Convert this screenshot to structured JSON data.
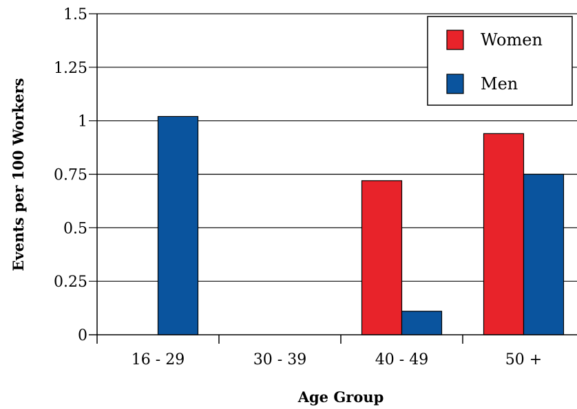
{
  "chart_data": {
    "type": "bar",
    "title": "",
    "xlabel": "Age Group",
    "ylabel": "Events per 100 Workers",
    "categories": [
      "16 - 29",
      "30 - 39",
      "40 - 49",
      "50 +"
    ],
    "series": [
      {
        "name": "Women",
        "color": "#e8232a",
        "values": [
          0,
          0,
          0.72,
          0.94
        ]
      },
      {
        "name": "Men",
        "color": "#0a549e",
        "values": [
          1.02,
          0,
          0.11,
          0.75
        ]
      }
    ],
    "ylim": [
      0,
      1.5
    ],
    "yticks": [
      "0",
      "0.25",
      "0.5",
      "0.75",
      "1",
      "1.25",
      "1.5"
    ],
    "grid": true,
    "legend_position": "top-right"
  }
}
